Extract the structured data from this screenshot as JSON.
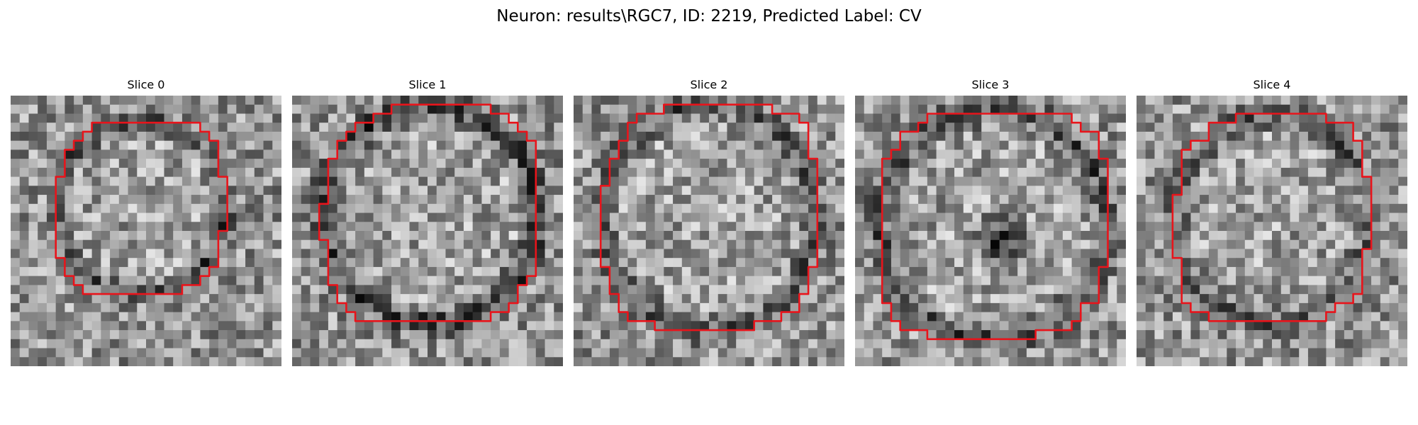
{
  "figure": {
    "title": "Neuron: results\\RGC7, ID: 2219, Predicted Label: CV"
  },
  "panels": [
    {
      "title": "Slice 0"
    },
    {
      "title": "Slice 1"
    },
    {
      "title": "Slice 2"
    },
    {
      "title": "Slice 3"
    },
    {
      "title": "Slice 4"
    }
  ],
  "colors": {
    "contour": "#e8141b"
  }
}
